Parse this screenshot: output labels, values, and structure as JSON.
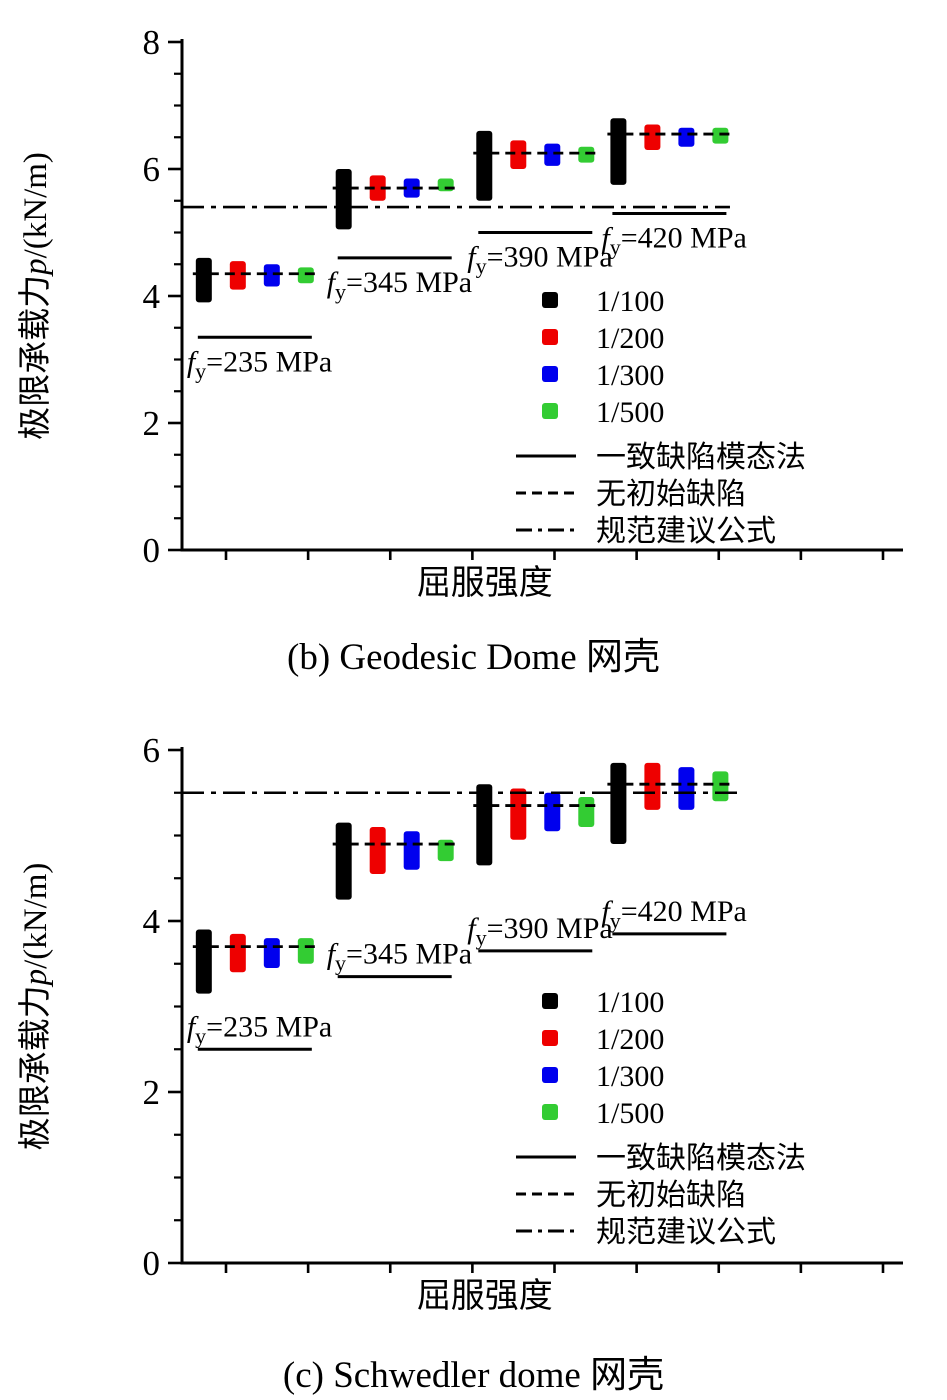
{
  "chart_data": [
    {
      "type": "floating-bar",
      "caption": "(b) Geodesic Dome 网壳",
      "xlabel": "屈服强度",
      "ylabel_prefix": "极限承载力",
      "ylabel_var": "p",
      "ylabel_suffix": "/(kN/m)",
      "ylim": [
        0,
        8
      ],
      "yticks": [
        0,
        2,
        4,
        6,
        8
      ],
      "minor_tick_step": 0.5,
      "code_formula_value": 5.4,
      "series": [
        {
          "name": "1/100",
          "color": "#000000"
        },
        {
          "name": "1/200",
          "color": "#ee0000"
        },
        {
          "name": "1/300",
          "color": "#0000ee"
        },
        {
          "name": "1/500",
          "color": "#33cc33"
        }
      ],
      "groups": [
        {
          "label_var": "f",
          "label_sub": "y",
          "label_eq": "=235 MPa",
          "no_imperfection": 4.35,
          "consistent_mode": 3.35,
          "ranges": [
            [
              3.9,
              4.6
            ],
            [
              4.1,
              4.55
            ],
            [
              4.15,
              4.5
            ],
            [
              4.2,
              4.45
            ]
          ]
        },
        {
          "label_var": "f",
          "label_sub": "y",
          "label_eq": "=345 MPa",
          "no_imperfection": 5.7,
          "consistent_mode": 4.6,
          "ranges": [
            [
              5.05,
              6.0
            ],
            [
              5.5,
              5.9
            ],
            [
              5.55,
              5.85
            ],
            [
              5.65,
              5.85
            ]
          ]
        },
        {
          "label_var": "f",
          "label_sub": "y",
          "label_eq": "=390 MPa",
          "no_imperfection": 6.25,
          "consistent_mode": 5.0,
          "ranges": [
            [
              5.5,
              6.6
            ],
            [
              6.0,
              6.45
            ],
            [
              6.05,
              6.4
            ],
            [
              6.1,
              6.35
            ]
          ]
        },
        {
          "label_var": "f",
          "label_sub": "y",
          "label_eq": "=420 MPa",
          "no_imperfection": 6.55,
          "consistent_mode": 5.3,
          "ranges": [
            [
              5.75,
              6.8
            ],
            [
              6.3,
              6.7
            ],
            [
              6.35,
              6.65
            ],
            [
              6.4,
              6.65
            ]
          ]
        }
      ],
      "legend": [
        {
          "label": "1/100",
          "marker": "square",
          "color": "#000000"
        },
        {
          "label": "1/200",
          "marker": "square",
          "color": "#ee0000"
        },
        {
          "label": "1/300",
          "marker": "square",
          "color": "#0000ee"
        },
        {
          "label": "1/500",
          "marker": "square",
          "color": "#33cc33"
        },
        {
          "label": "一致缺陷模态法",
          "marker": "solid-line",
          "color": "#000000"
        },
        {
          "label": "无初始缺陷",
          "marker": "dashed-line",
          "color": "#000000"
        },
        {
          "label": "规范建议公式",
          "marker": "dashdot-line",
          "color": "#000000"
        }
      ],
      "fy_label_position": "below-line"
    },
    {
      "type": "floating-bar",
      "caption": "(c) Schwedler dome 网壳",
      "xlabel": "屈服强度",
      "ylabel_prefix": "极限承载力",
      "ylabel_var": "p",
      "ylabel_suffix": "/(kN/m)",
      "ylim": [
        0,
        6
      ],
      "yticks": [
        0,
        2,
        4,
        6
      ],
      "minor_tick_step": 0.5,
      "code_formula_value": 5.5,
      "series": [
        {
          "name": "1/100",
          "color": "#000000"
        },
        {
          "name": "1/200",
          "color": "#ee0000"
        },
        {
          "name": "1/300",
          "color": "#0000ee"
        },
        {
          "name": "1/500",
          "color": "#33cc33"
        }
      ],
      "groups": [
        {
          "label_var": "f",
          "label_sub": "y",
          "label_eq": "=235 MPa",
          "no_imperfection": 3.7,
          "consistent_mode": 2.5,
          "ranges": [
            [
              3.15,
              3.9
            ],
            [
              3.4,
              3.85
            ],
            [
              3.45,
              3.8
            ],
            [
              3.5,
              3.8
            ]
          ]
        },
        {
          "label_var": "f",
          "label_sub": "y",
          "label_eq": "=345 MPa",
          "no_imperfection": 4.9,
          "consistent_mode": 3.35,
          "ranges": [
            [
              4.25,
              5.15
            ],
            [
              4.55,
              5.1
            ],
            [
              4.6,
              5.05
            ],
            [
              4.7,
              4.95
            ]
          ]
        },
        {
          "label_var": "f",
          "label_sub": "y",
          "label_eq": "=390 MPa",
          "no_imperfection": 5.35,
          "consistent_mode": 3.65,
          "ranges": [
            [
              4.65,
              5.6
            ],
            [
              4.95,
              5.55
            ],
            [
              5.05,
              5.5
            ],
            [
              5.1,
              5.45
            ]
          ]
        },
        {
          "label_var": "f",
          "label_sub": "y",
          "label_eq": "=420 MPa",
          "no_imperfection": 5.6,
          "consistent_mode": 3.85,
          "ranges": [
            [
              4.9,
              5.85
            ],
            [
              5.3,
              5.85
            ],
            [
              5.3,
              5.8
            ],
            [
              5.4,
              5.75
            ]
          ]
        }
      ],
      "legend": [
        {
          "label": "1/100",
          "marker": "square",
          "color": "#000000"
        },
        {
          "label": "1/200",
          "marker": "square",
          "color": "#ee0000"
        },
        {
          "label": "1/300",
          "marker": "square",
          "color": "#0000ee"
        },
        {
          "label": "1/500",
          "marker": "square",
          "color": "#33cc33"
        },
        {
          "label": "一致缺陷模态法",
          "marker": "solid-line",
          "color": "#000000"
        },
        {
          "label": "无初始缺陷",
          "marker": "dashed-line",
          "color": "#000000"
        },
        {
          "label": "规范建议公式",
          "marker": "dashdot-line",
          "color": "#000000"
        }
      ],
      "fy_label_position": "above-line"
    }
  ]
}
